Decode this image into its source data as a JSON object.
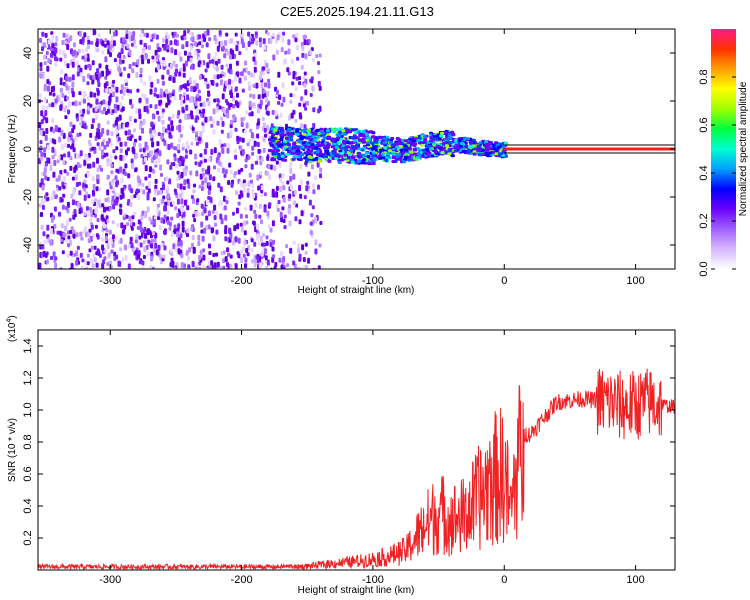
{
  "title": "C2E5.2025.194.21.11.G13",
  "chart_data": [
    {
      "type": "heatmap",
      "xlabel": "Height of straight line (km)",
      "ylabel": "Frequency (Hz)",
      "xlim": [
        -355,
        130
      ],
      "ylim": [
        -50,
        50
      ],
      "x_ticks": [
        -300,
        -200,
        -100,
        0,
        100
      ],
      "y_ticks": [
        -40,
        -20,
        0,
        20,
        40
      ],
      "colorbar": {
        "label": "Normalized spectral amplitude",
        "range": [
          0,
          1
        ],
        "ticks": [
          "0.0",
          "0.2",
          "0.4",
          "0.6",
          "0.8"
        ],
        "tick_values": [
          0.0,
          0.2,
          0.4,
          0.6,
          0.8
        ],
        "colors": [
          "#ffffff",
          "#d8b8ff",
          "#a060ff",
          "#6a00ff",
          "#0000ff",
          "#00a0ff",
          "#00ffd0",
          "#00ff40",
          "#a0ff00",
          "#ffff00",
          "#ffa000",
          "#ff3000",
          "#ff1a8c"
        ]
      },
      "signal": {
        "ridge_x": [
          -180,
          -150,
          -120,
          -100,
          -80,
          -60,
          -45,
          -30,
          -20,
          0,
          130
        ],
        "ridge_y": [
          3,
          2,
          2,
          1,
          0,
          2,
          3,
          2,
          1,
          0,
          0
        ],
        "strong_from_x": 0,
        "strong_color": "#ff1a1a"
      }
    },
    {
      "type": "line",
      "xlabel": "Height of straight line (km)",
      "ylabel": "SNR (10 * v/v)",
      "y_exponent_label": "(x10",
      "y_exponent_power": "4",
      "y_exponent_close": ")",
      "xlim": [
        -355,
        130
      ],
      "ylim": [
        0,
        1.5
      ],
      "x_ticks": [
        -300,
        -200,
        -100,
        0,
        100
      ],
      "y_ticks": [
        "0.2",
        "0.4",
        "0.6",
        "0.8",
        "1.0",
        "1.2",
        "1.4"
      ],
      "y_tick_values": [
        0.2,
        0.4,
        0.6,
        0.8,
        1.0,
        1.2,
        1.4
      ],
      "color": "#ee2222",
      "series": [
        {
          "x": [
            -355,
            -300,
            -250,
            -200,
            -170,
            -150,
            -130,
            -110,
            -90,
            -75,
            -60,
            -50,
            -40,
            -30,
            -20,
            -10,
            0,
            5,
            10,
            20,
            30,
            40,
            60,
            80,
            90,
            100,
            110,
            120,
            130
          ],
          "y": [
            0.02,
            0.02,
            0.02,
            0.02,
            0.02,
            0.03,
            0.05,
            0.07,
            0.1,
            0.15,
            0.35,
            0.45,
            0.4,
            0.42,
            0.55,
            0.7,
            0.75,
            0.45,
            0.85,
            0.85,
            0.95,
            1.05,
            1.07,
            1.05,
            1.02,
            1.03,
            1.05,
            1.03,
            1.02
          ]
        }
      ]
    }
  ]
}
